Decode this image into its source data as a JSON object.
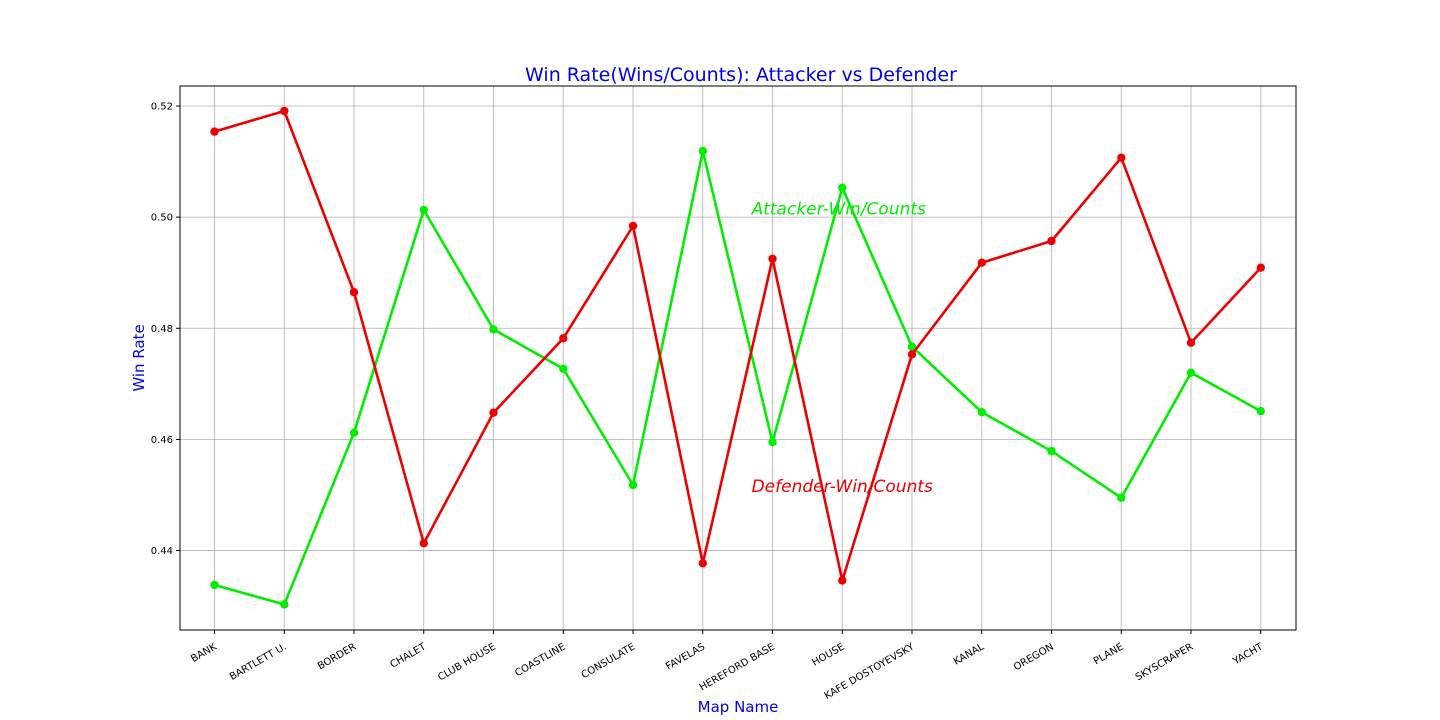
{
  "colors": {
    "title": "#0000ee",
    "axis_label": "#0000ee",
    "attacker": "#00ee00",
    "defender": "#ee0000"
  },
  "chart_data": {
    "type": "line",
    "title": "Win Rate(Wins/Counts): Attacker  vs  Defender",
    "xlabel": "Map Name",
    "ylabel": "Win Rate",
    "categories": [
      "BANK",
      "BARTLETT U.",
      "BORDER",
      "CHALET",
      "CLUB HOUSE",
      "COASTLINE",
      "CONSULATE",
      "FAVELAS",
      "HEREFORD BASE",
      "HOUSE",
      "KAFE DOSTOYEVSKY",
      "KANAL",
      "OREGON",
      "PLANE",
      "SKYSCRAPER",
      "YACHT"
    ],
    "yticks": [
      "0.44",
      "0.46",
      "0.48",
      "0.50",
      "0.52"
    ],
    "ylim": [
      0.4257,
      0.5236
    ],
    "grid": true,
    "series": [
      {
        "key": "attacker",
        "values": [
          0.4338,
          0.4303,
          0.4612,
          0.5013,
          0.4798,
          0.4727,
          0.4518,
          0.5119,
          0.4595,
          0.5053,
          0.4767,
          0.4649,
          0.4579,
          0.4495,
          0.472,
          0.4651
        ]
      },
      {
        "key": "defender",
        "values": [
          0.5154,
          0.5191,
          0.4865,
          0.4413,
          0.4648,
          0.4782,
          0.4984,
          0.4377,
          0.4925,
          0.4346,
          0.4753,
          0.4918,
          0.4957,
          0.5107,
          0.4774,
          0.4909
        ]
      }
    ],
    "annotations": [
      {
        "text": "Attacker-Win/Counts",
        "x": 7.7,
        "y": 0.5005,
        "color": "#00ee00"
      },
      {
        "text": "Defender-Win/Counts",
        "x": 7.7,
        "y": 0.4505,
        "color": "#ee0000"
      }
    ]
  }
}
